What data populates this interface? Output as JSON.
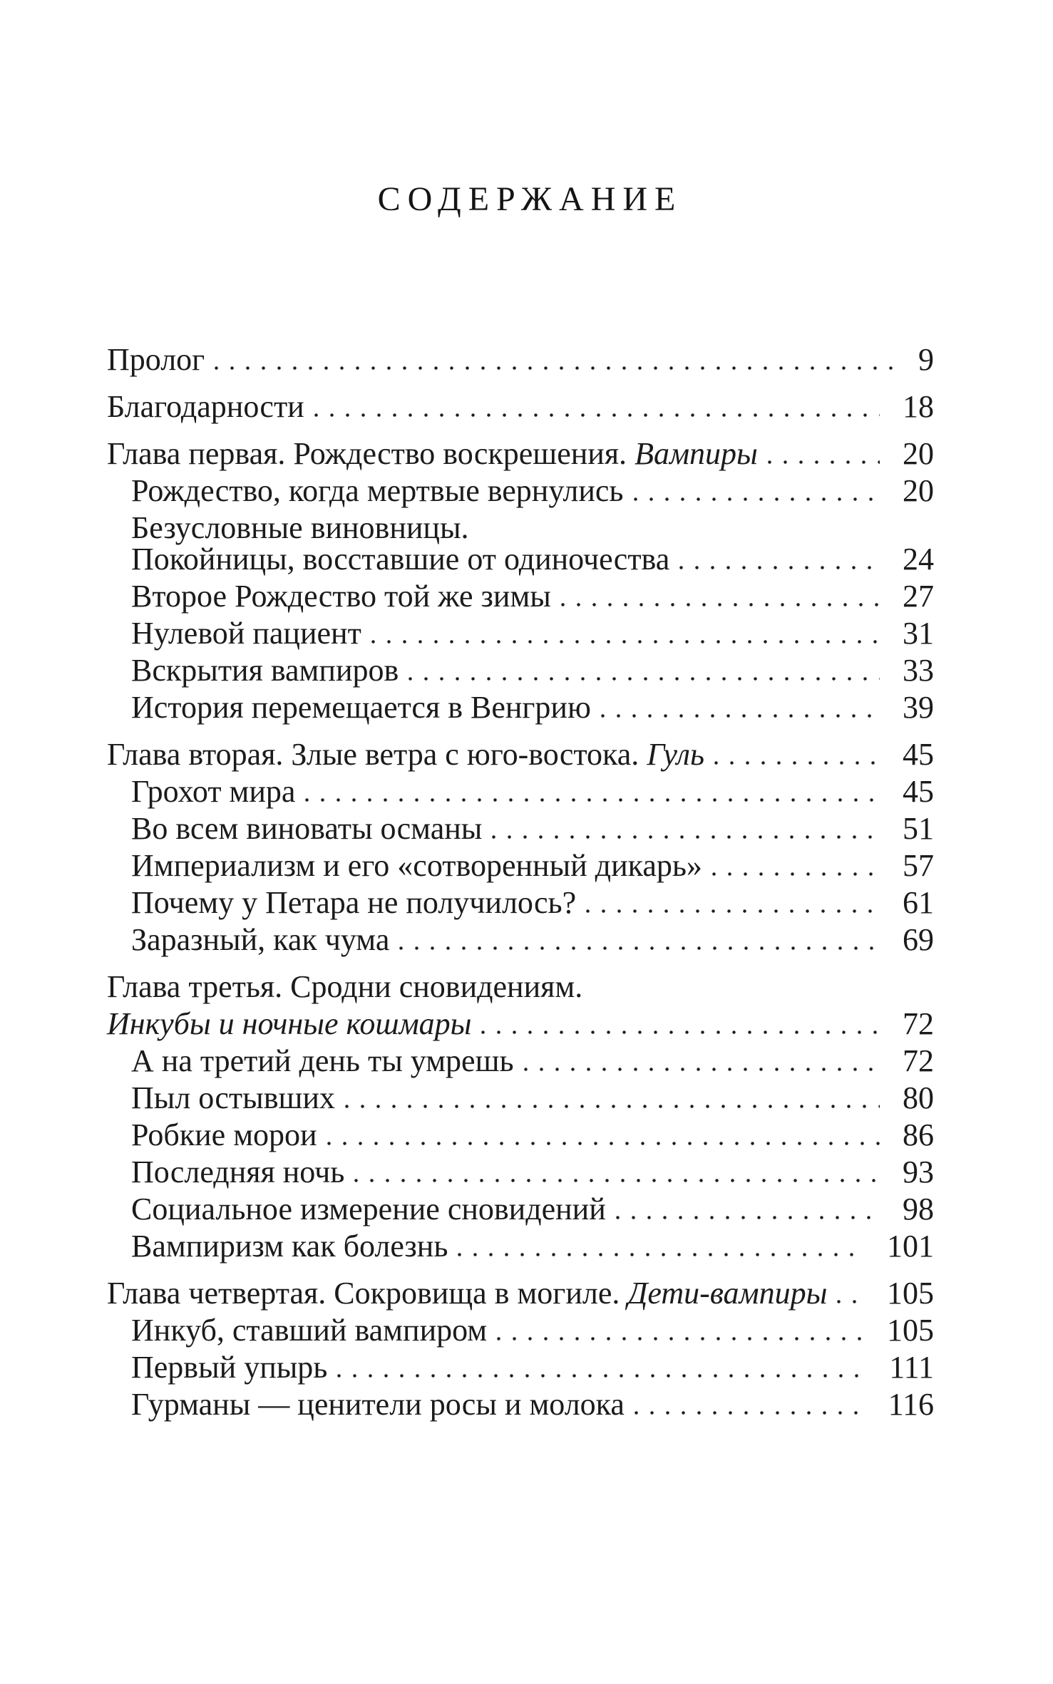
{
  "title": "СОДЕРЖАНИЕ",
  "text_color": "#1b1b1b",
  "background_color": "#ffffff",
  "toc": {
    "entries": [
      {
        "level": 0,
        "gap": false,
        "tight": false,
        "parts": [
          {
            "text": "Пролог",
            "italic": false
          }
        ],
        "page": "9"
      },
      {
        "level": 0,
        "gap": true,
        "tight": false,
        "parts": [
          {
            "text": "Благодарности",
            "italic": false
          }
        ],
        "page": "18"
      },
      {
        "level": 0,
        "gap": true,
        "tight": false,
        "parts": [
          {
            "text": "Глава первая. Рождество воскрешения. ",
            "italic": false
          },
          {
            "text": "Вампиры",
            "italic": true
          }
        ],
        "page": "20"
      },
      {
        "level": 1,
        "gap": false,
        "tight": false,
        "parts": [
          {
            "text": "Рождество, когда мертвые вернулись",
            "italic": false
          }
        ],
        "page": "20"
      },
      {
        "level": 1,
        "gap": false,
        "tight": false,
        "parts": [
          {
            "text": "Безусловные виновницы.",
            "italic": false
          }
        ],
        "page": ""
      },
      {
        "level": 1,
        "gap": false,
        "tight": true,
        "parts": [
          {
            "text": "Покойницы, восставшие от одиночества",
            "italic": false
          }
        ],
        "page": "24"
      },
      {
        "level": 1,
        "gap": false,
        "tight": false,
        "parts": [
          {
            "text": "Второе Рождество той же зимы",
            "italic": false
          }
        ],
        "page": "27"
      },
      {
        "level": 1,
        "gap": false,
        "tight": false,
        "parts": [
          {
            "text": "Нулевой пациент",
            "italic": false
          }
        ],
        "page": "31"
      },
      {
        "level": 1,
        "gap": false,
        "tight": false,
        "parts": [
          {
            "text": "Вскрытия вампиров",
            "italic": false
          }
        ],
        "page": "33"
      },
      {
        "level": 1,
        "gap": false,
        "tight": false,
        "parts": [
          {
            "text": "История перемещается в Венгрию",
            "italic": false
          }
        ],
        "page": "39"
      },
      {
        "level": 0,
        "gap": true,
        "tight": false,
        "parts": [
          {
            "text": "Глава вторая. Злые ветра с юго-востока. ",
            "italic": false
          },
          {
            "text": "Гуль",
            "italic": true
          }
        ],
        "page": "45"
      },
      {
        "level": 1,
        "gap": false,
        "tight": false,
        "parts": [
          {
            "text": "Грохот мира",
            "italic": false
          }
        ],
        "page": "45"
      },
      {
        "level": 1,
        "gap": false,
        "tight": false,
        "parts": [
          {
            "text": "Во всем виноваты османы",
            "italic": false
          }
        ],
        "page": "51"
      },
      {
        "level": 1,
        "gap": false,
        "tight": false,
        "parts": [
          {
            "text": "Империализм и его «сотворенный дикарь»",
            "italic": false
          }
        ],
        "page": "57"
      },
      {
        "level": 1,
        "gap": false,
        "tight": false,
        "parts": [
          {
            "text": "Почему у Петара не получилось?",
            "italic": false
          }
        ],
        "page": "61"
      },
      {
        "level": 1,
        "gap": false,
        "tight": false,
        "parts": [
          {
            "text": "Заразный, как чума",
            "italic": false
          }
        ],
        "page": "69"
      },
      {
        "level": 0,
        "gap": true,
        "tight": false,
        "parts": [
          {
            "text": "Глава третья. Сродни сновидениям.",
            "italic": false
          }
        ],
        "page": ""
      },
      {
        "level": 0,
        "gap": false,
        "tight": false,
        "parts": [
          {
            "text": "Инкубы и ночные кошмары",
            "italic": true
          }
        ],
        "page": "72"
      },
      {
        "level": 1,
        "gap": false,
        "tight": false,
        "parts": [
          {
            "text": "А на третий день ты умрешь",
            "italic": false
          }
        ],
        "page": "72"
      },
      {
        "level": 1,
        "gap": false,
        "tight": false,
        "parts": [
          {
            "text": "Пыл остывших",
            "italic": false
          }
        ],
        "page": "80"
      },
      {
        "level": 1,
        "gap": false,
        "tight": false,
        "parts": [
          {
            "text": "Робкие морои",
            "italic": false
          }
        ],
        "page": "86"
      },
      {
        "level": 1,
        "gap": false,
        "tight": false,
        "parts": [
          {
            "text": "Последняя ночь",
            "italic": false
          }
        ],
        "page": "93"
      },
      {
        "level": 1,
        "gap": false,
        "tight": false,
        "parts": [
          {
            "text": "Социальное измерение сновидений",
            "italic": false
          }
        ],
        "page": "98"
      },
      {
        "level": 1,
        "gap": false,
        "tight": false,
        "parts": [
          {
            "text": "Вампиризм как болезнь",
            "italic": false
          }
        ],
        "page": "101"
      },
      {
        "level": 0,
        "gap": true,
        "tight": false,
        "parts": [
          {
            "text": "Глава четвертая. Сокровища в могиле. ",
            "italic": false
          },
          {
            "text": "Дети-вампиры",
            "italic": true
          }
        ],
        "page": "105"
      },
      {
        "level": 1,
        "gap": false,
        "tight": false,
        "parts": [
          {
            "text": "Инкуб, ставший вампиром",
            "italic": false
          }
        ],
        "page": "105"
      },
      {
        "level": 1,
        "gap": false,
        "tight": false,
        "parts": [
          {
            "text": "Первый упырь",
            "italic": false
          }
        ],
        "page": "111"
      },
      {
        "level": 1,
        "gap": false,
        "tight": false,
        "parts": [
          {
            "text": "Гурманы — ценители росы и молока",
            "italic": false
          }
        ],
        "page": "116"
      }
    ]
  }
}
